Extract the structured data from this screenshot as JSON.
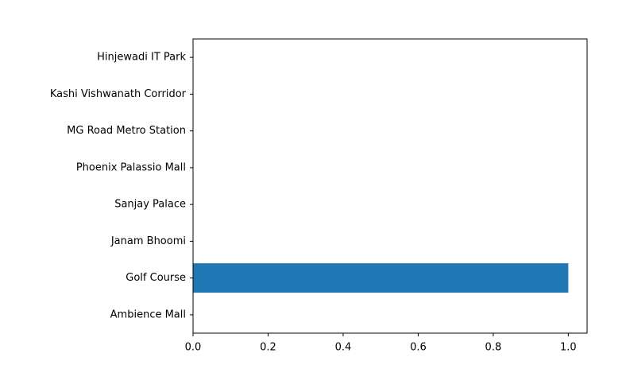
{
  "chart_data": {
    "type": "bar",
    "orientation": "horizontal",
    "title": "",
    "xlabel": "",
    "ylabel": "",
    "categories": [
      "Ambience Mall",
      "Golf Course",
      "Janam Bhoomi",
      "Sanjay Palace",
      "Phoenix Palassio Mall",
      "MG Road Metro Station",
      "Kashi Vishwanath Corridor",
      "Hinjewadi IT Park"
    ],
    "values": [
      0,
      1,
      0,
      0,
      0,
      0,
      0,
      0
    ],
    "xlim": [
      0,
      1.05
    ],
    "xticks": [
      "0.0",
      "0.2",
      "0.4",
      "0.6",
      "0.8",
      "1.0"
    ],
    "grid": false,
    "bar_color": "#1f77b4"
  }
}
